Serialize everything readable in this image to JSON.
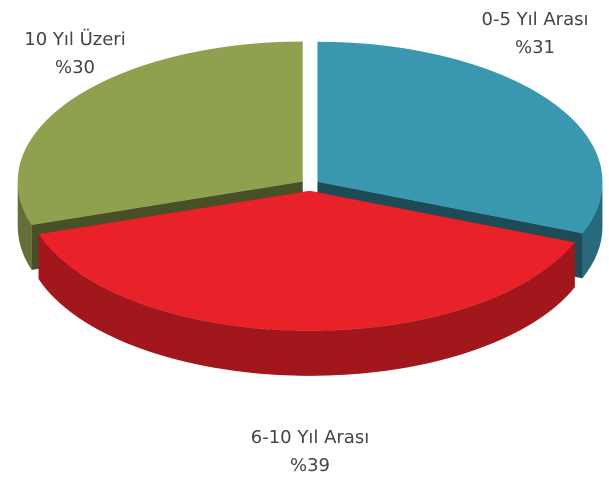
{
  "chart_data": {
    "type": "pie",
    "categories": [
      "0-5 Yıl Arası",
      "6-10 Yıl Arası",
      "10 Yıl Üzeri"
    ],
    "values": [
      31,
      39,
      30
    ],
    "value_labels": [
      "%31",
      "%39",
      "%30"
    ],
    "colors": [
      "#3a97b0",
      "#e82228",
      "#8fa04f"
    ]
  }
}
